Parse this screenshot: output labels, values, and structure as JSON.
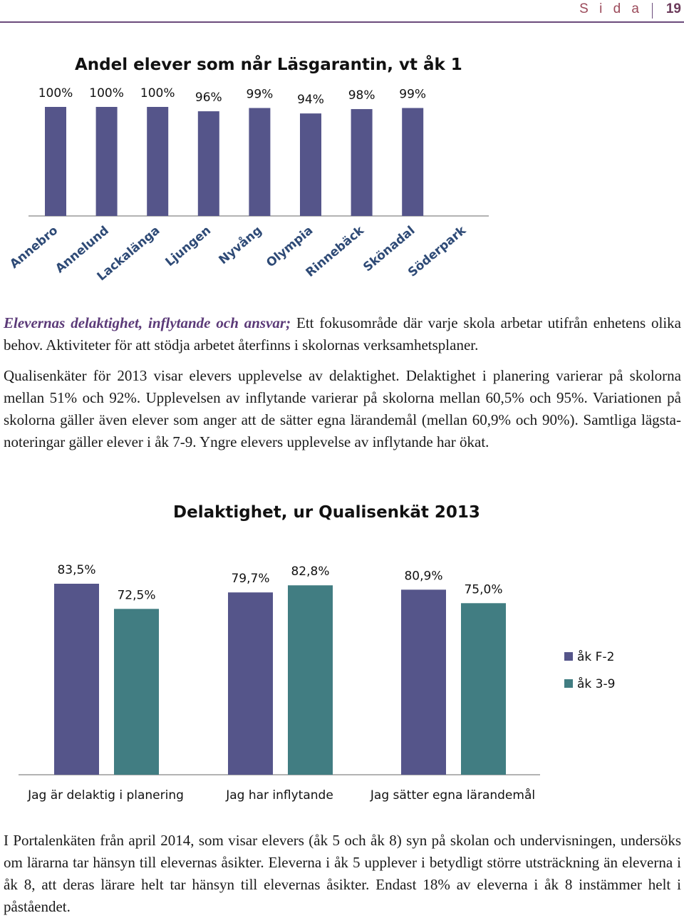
{
  "header": {
    "page_label": "S i d a",
    "page_number": "19"
  },
  "chart1": {
    "title": "Andel elever som når Läsgarantin, vt åk 1",
    "chart_data": {
      "type": "bar",
      "categories": [
        "Annebro",
        "Annelund",
        "Lackalänga",
        "Ljungen",
        "Nyvång",
        "Olympia",
        "Rinnebäck",
        "Skönadal",
        "Söderpark"
      ],
      "values": [
        100,
        100,
        100,
        96,
        99,
        94,
        98,
        99,
        null
      ],
      "value_labels": [
        "100%",
        "100%",
        "100%",
        "96%",
        "99%",
        "94%",
        "98%",
        "99%",
        ""
      ],
      "ylim": [
        0,
        100
      ],
      "color": "#55558a",
      "grid": false,
      "legend": "none"
    }
  },
  "paragraph1": {
    "lead": "Elevernas delaktighet, inflytande och ansvar;",
    "rest": " Ett fokusområde där varje skola arbetar utifrån enhetens olika behov. Aktiviteter för att stödja arbetet återfinns i skolornas verksamhetsplaner."
  },
  "paragraph2": "Qualisenkäter för 2013 visar elevers upplevelse av delaktighet. Delaktighet i planering varierar på skolorna mellan 51% och 92%. Upplevelsen av inflytande varierar på skolorna mellan 60,5% och 95%. Variationen på skolorna gäller även elever som anger att de sätter egna lärandemål (mellan 60,9% och 90%). Samtliga lägsta-noteringar gäller elever i åk 7-9. Yngre elevers upplevelse av inflytande har ökat.",
  "chart2": {
    "title": "Delaktighet, ur Qualisenkät 2013",
    "chart_data": {
      "type": "bar",
      "categories": [
        "Jag är delaktig i planering",
        "Jag har inflytande",
        "Jag sätter egna lärandemål"
      ],
      "series": [
        {
          "name": "åk F-2",
          "values": [
            83.5,
            79.7,
            80.9
          ],
          "labels": [
            "83,5%",
            "79,7%",
            "80,9%"
          ],
          "color": "#55558a"
        },
        {
          "name": "åk 3-9",
          "values": [
            72.5,
            82.8,
            75.0
          ],
          "labels": [
            "72,5%",
            "82,8%",
            "75,0%"
          ],
          "color": "#417d82"
        }
      ],
      "legend": "right",
      "grid": false
    }
  },
  "paragraph3": "I Portalenkäten från april 2014, som visar elevers (åk 5 och åk 8) syn på skolan och undervisningen, undersöks om lärarna tar hänsyn till elevernas åsikter. Eleverna i åk 5 upplever i betydligt större utsträckning än eleverna i åk 8, att deras lärare helt tar hänsyn till elevernas åsikter. Endast 18% av eleverna i åk 8 instämmer helt i påståendet."
}
